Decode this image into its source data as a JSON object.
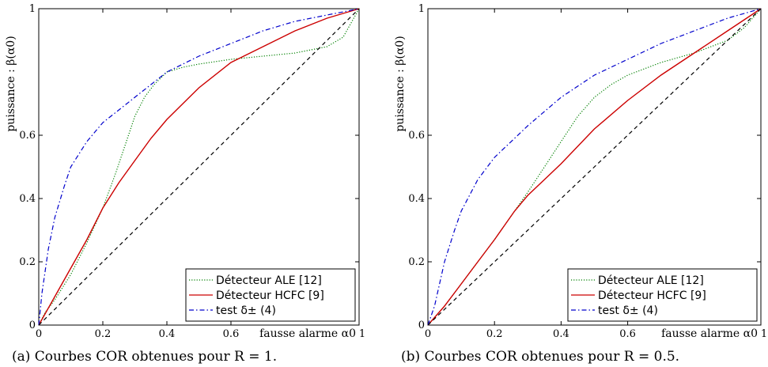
{
  "chart_data": [
    {
      "type": "line",
      "caption": "(a) Courbes COR obtenues pour R = 1.",
      "xlabel": "fausse alarme α0",
      "ylabel": "puissance : β(α0)",
      "xlim": [
        0,
        1
      ],
      "ylim": [
        0,
        1
      ],
      "x_ticks": [
        {
          "v": 0,
          "label": "0"
        },
        {
          "v": 0.2,
          "label": "0.2"
        },
        {
          "v": 0.4,
          "label": "0.4"
        },
        {
          "v": 0.6,
          "label": "0.6"
        },
        {
          "v": 1,
          "label": "1"
        }
      ],
      "y_ticks": [
        {
          "v": 0,
          "label": "0"
        },
        {
          "v": 0.2,
          "label": "0.2"
        },
        {
          "v": 0.4,
          "label": "0.4"
        },
        {
          "v": 0.6,
          "label": "0.6"
        },
        {
          "v": 1,
          "label": "1"
        }
      ],
      "legend_position": "bottom-right",
      "series": [
        {
          "name": "Détecteur ALE [12]",
          "color": "#008000",
          "style": "dotted",
          "x": [
            0,
            0.02,
            0.05,
            0.1,
            0.15,
            0.2,
            0.24,
            0.27,
            0.3,
            0.33,
            0.36,
            0.4,
            0.45,
            0.5,
            0.6,
            0.7,
            0.8,
            0.9,
            0.95,
            1
          ],
          "y": [
            0,
            0.04,
            0.08,
            0.16,
            0.26,
            0.37,
            0.48,
            0.57,
            0.66,
            0.72,
            0.76,
            0.8,
            0.815,
            0.825,
            0.84,
            0.85,
            0.86,
            0.88,
            0.91,
            1
          ]
        },
        {
          "name": "Détecteur HCFC [9]",
          "color": "#cc0000",
          "style": "solid",
          "x": [
            0,
            0.05,
            0.1,
            0.15,
            0.2,
            0.25,
            0.3,
            0.35,
            0.4,
            0.5,
            0.6,
            0.7,
            0.8,
            0.9,
            1
          ],
          "y": [
            0,
            0.09,
            0.18,
            0.27,
            0.37,
            0.45,
            0.52,
            0.59,
            0.65,
            0.75,
            0.83,
            0.88,
            0.93,
            0.97,
            1
          ]
        },
        {
          "name": "test δ± (4)",
          "color": "#0000cc",
          "style": "dashdot",
          "x": [
            0,
            0.01,
            0.03,
            0.05,
            0.08,
            0.1,
            0.15,
            0.2,
            0.25,
            0.3,
            0.4,
            0.5,
            0.6,
            0.7,
            0.8,
            0.9,
            1
          ],
          "y": [
            0,
            0.1,
            0.24,
            0.34,
            0.44,
            0.5,
            0.58,
            0.64,
            0.68,
            0.72,
            0.8,
            0.85,
            0.89,
            0.93,
            0.96,
            0.98,
            1
          ]
        },
        {
          "name": "",
          "color": "#000000",
          "style": "dashed",
          "x": [
            0,
            1
          ],
          "y": [
            0,
            1
          ]
        }
      ]
    },
    {
      "type": "line",
      "caption": "(b) Courbes COR obtenues pour R = 0.5.",
      "xlabel": "fausse alarme α0",
      "ylabel": "puissance : β(α0)",
      "xlim": [
        0,
        1
      ],
      "ylim": [
        0,
        1
      ],
      "x_ticks": [
        {
          "v": 0,
          "label": "0"
        },
        {
          "v": 0.2,
          "label": "0.2"
        },
        {
          "v": 0.4,
          "label": "0.4"
        },
        {
          "v": 0.6,
          "label": "0.6"
        },
        {
          "v": 1,
          "label": "1"
        }
      ],
      "y_ticks": [
        {
          "v": 0,
          "label": "0"
        },
        {
          "v": 0.2,
          "label": "0.2"
        },
        {
          "v": 0.4,
          "label": "0.4"
        },
        {
          "v": 0.6,
          "label": "0.6"
        },
        {
          "v": 1,
          "label": "1"
        }
      ],
      "legend_position": "bottom-right",
      "series": [
        {
          "name": "Détecteur ALE [12]",
          "color": "#008000",
          "style": "dotted",
          "x": [
            0,
            0.05,
            0.1,
            0.15,
            0.2,
            0.26,
            0.3,
            0.35,
            0.4,
            0.45,
            0.5,
            0.55,
            0.6,
            0.7,
            0.8,
            0.9,
            0.95,
            1
          ],
          "y": [
            0,
            0.06,
            0.13,
            0.2,
            0.27,
            0.36,
            0.42,
            0.5,
            0.58,
            0.66,
            0.72,
            0.76,
            0.79,
            0.83,
            0.86,
            0.9,
            0.94,
            1
          ]
        },
        {
          "name": "Détecteur HCFC [9]",
          "color": "#cc0000",
          "style": "solid",
          "x": [
            0,
            0.05,
            0.1,
            0.15,
            0.2,
            0.26,
            0.3,
            0.35,
            0.4,
            0.5,
            0.6,
            0.7,
            0.8,
            0.9,
            1
          ],
          "y": [
            0,
            0.06,
            0.13,
            0.2,
            0.27,
            0.36,
            0.41,
            0.46,
            0.51,
            0.62,
            0.71,
            0.79,
            0.86,
            0.93,
            1
          ]
        },
        {
          "name": "test δ± (4)",
          "color": "#0000cc",
          "style": "dashdot",
          "x": [
            0,
            0.02,
            0.05,
            0.08,
            0.1,
            0.15,
            0.2,
            0.3,
            0.4,
            0.5,
            0.6,
            0.7,
            0.8,
            0.9,
            1
          ],
          "y": [
            0,
            0.06,
            0.2,
            0.3,
            0.36,
            0.46,
            0.53,
            0.63,
            0.72,
            0.79,
            0.84,
            0.89,
            0.93,
            0.97,
            1
          ]
        },
        {
          "name": "",
          "color": "#000000",
          "style": "dashed",
          "x": [
            0,
            1
          ],
          "y": [
            0,
            1
          ]
        }
      ]
    }
  ]
}
